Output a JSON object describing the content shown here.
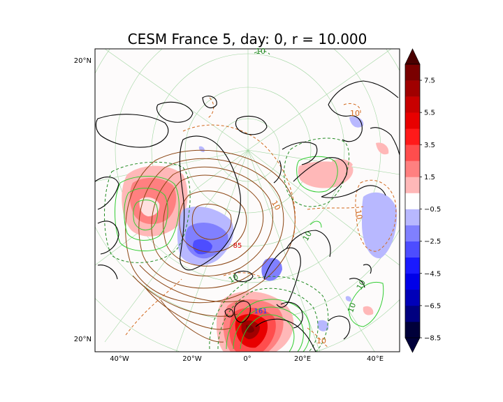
{
  "title": "CESM France 5, day: 0, r = 10.000",
  "chart_data": {
    "type": "heatmap",
    "title": "CESM France 5, day: 0, r = 10.000",
    "projection": "polar stereographic (north)",
    "x_ticks": [
      "40°W",
      "20°W",
      "0°",
      "20°E",
      "40°E"
    ],
    "y_ticks": [
      "20°N",
      "20°N"
    ],
    "colorbar": {
      "ticks": [
        "7.5",
        "5.5",
        "3.5",
        "1.5",
        "−0.5",
        "−2.5",
        "−4.5",
        "−6.5",
        "−8.5"
      ],
      "levels": [
        -8.5,
        -7.5,
        -6.5,
        -5.5,
        -4.5,
        -3.5,
        -2.5,
        -1.5,
        -0.5,
        0.5,
        1.5,
        2.5,
        3.5,
        4.5,
        5.5,
        6.5,
        7.5,
        8.5
      ],
      "colors": [
        "#00003a",
        "#000080",
        "#0000b8",
        "#0000e8",
        "#1a1aff",
        "#4d4dff",
        "#8080ff",
        "#b8b8ff",
        "#ffffff",
        "#ffb8b8",
        "#ff8080",
        "#ff4d4d",
        "#ff1a1a",
        "#e80000",
        "#c80000",
        "#a00000",
        "#7a0000"
      ],
      "extend": "both"
    },
    "contour_labels": [
      {
        "text": "10",
        "color": "#228b22"
      },
      {
        "text": "10",
        "color": "#d2691e"
      },
      {
        "text": "10",
        "color": "#d2691e"
      },
      {
        "text": "10",
        "color": "#d2691e"
      },
      {
        "text": "10",
        "color": "#228b22"
      },
      {
        "text": "10",
        "color": "#228b22"
      },
      {
        "text": "10",
        "color": "#228b22"
      },
      {
        "text": "10",
        "color": "#228b22"
      },
      {
        "text": "10",
        "color": "#d2691e"
      }
    ],
    "extrema_labels": [
      {
        "text": "85",
        "color": "#e00000"
      },
      {
        "text": "161",
        "color": "#1040ff"
      }
    ],
    "grid": true
  }
}
